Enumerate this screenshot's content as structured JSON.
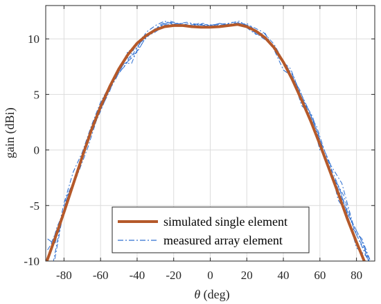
{
  "chart_data": {
    "type": "line",
    "title": "",
    "xlabel_symbol": "θ",
    "xlabel_unit": "(deg)",
    "ylabel": "gain (dBi)",
    "xlim": [
      -90,
      90
    ],
    "ylim": [
      -10,
      13
    ],
    "xticks": [
      -80,
      -60,
      -40,
      -20,
      0,
      20,
      40,
      60,
      80
    ],
    "yticks": [
      -10,
      -5,
      0,
      5,
      10
    ],
    "grid": true,
    "legend_placement": "bottom-center",
    "series": [
      {
        "name": "simulated single element",
        "color": "#b5592a",
        "style": "solid",
        "x": [
          -90,
          -85,
          -80,
          -75,
          -70,
          -65,
          -60,
          -55,
          -50,
          -45,
          -40,
          -35,
          -30,
          -25,
          -20,
          -15,
          -10,
          -5,
          0,
          5,
          10,
          15,
          20,
          25,
          30,
          35,
          40,
          45,
          50,
          55,
          60,
          65,
          70,
          75,
          80,
          85,
          90
        ],
        "y": [
          -10.3,
          -8.0,
          -5.6,
          -3.1,
          -0.6,
          1.8,
          3.9,
          5.7,
          7.3,
          8.6,
          9.6,
          10.3,
          10.8,
          11.1,
          11.2,
          11.2,
          11.1,
          11.05,
          11.05,
          11.1,
          11.2,
          11.3,
          11.1,
          10.7,
          10.1,
          9.2,
          7.9,
          6.3,
          4.5,
          2.6,
          0.5,
          -1.7,
          -3.9,
          -6.2,
          -8.3,
          -10.3,
          -11.5
        ]
      },
      {
        "name": "measured array element",
        "color": "#2f6fd0",
        "style": "dashdot",
        "x": [
          -89,
          -85,
          -80,
          -75,
          -70,
          -65,
          -60,
          -55,
          -50,
          -45,
          -40,
          -35,
          -30,
          -25,
          -20,
          -15,
          -10,
          -5,
          0,
          5,
          10,
          15,
          20,
          25,
          30,
          35,
          40,
          45,
          50,
          55,
          60,
          65,
          70,
          75,
          80,
          85,
          89
        ],
        "y": [
          -8.0,
          -8.5,
          -4.8,
          -2.0,
          -0.2,
          2.2,
          4.3,
          5.8,
          7.1,
          8.9,
          9.2,
          10.6,
          11.2,
          11.6,
          11.3,
          11.4,
          11.1,
          11.3,
          11.0,
          11.4,
          11.2,
          11.5,
          11.0,
          10.4,
          10.5,
          9.0,
          7.2,
          6.6,
          4.0,
          3.2,
          0.0,
          -1.0,
          -4.5,
          -5.8,
          -8.8,
          -9.5,
          -10.5
        ],
        "variants": [
          {
            "x": [
              -88,
              -84,
              -80,
              -74,
              -68,
              -62,
              -56,
              -50,
              -44,
              -38,
              -32,
              -26,
              -20,
              -14,
              -8,
              -2,
              4,
              10,
              16,
              22,
              28,
              34,
              40,
              46,
              52,
              58,
              64,
              70,
              76,
              82,
              88
            ],
            "y": [
              -9.5,
              -7.0,
              -5.5,
              -2.8,
              0.4,
              3.0,
              5.5,
              6.9,
              8.2,
              9.7,
              10.7,
              11.4,
              11.5,
              11.2,
              11.3,
              11.2,
              11.3,
              11.4,
              11.6,
              10.9,
              10.3,
              9.4,
              8.0,
              6.5,
              3.7,
              2.2,
              -0.8,
              -3.2,
              -6.0,
              -7.9,
              -10.2
            ]
          },
          {
            "x": [
              -86,
              -82,
              -78,
              -72,
              -66,
              -60,
              -54,
              -48,
              -42,
              -36,
              -30,
              -24,
              -18,
              -12,
              -6,
              0,
              6,
              12,
              18,
              24,
              30,
              36,
              42,
              48,
              54,
              60,
              66,
              72,
              78,
              84,
              88
            ],
            "y": [
              -10.2,
              -6.8,
              -4.0,
              -1.8,
              1.2,
              3.5,
              5.9,
              7.6,
              8.4,
              9.9,
              10.9,
              11.3,
              11.4,
              11.1,
              11.4,
              11.2,
              11.1,
              11.5,
              11.3,
              10.8,
              10.2,
              8.8,
              7.6,
              5.1,
              3.6,
              0.9,
              -1.4,
              -3.0,
              -6.6,
              -8.6,
              -10.8
            ]
          },
          {
            "x": [
              -89,
              -83,
              -77,
              -71,
              -65,
              -59,
              -53,
              -47,
              -41,
              -35,
              -29,
              -23,
              -17,
              -11,
              -5,
              1,
              7,
              13,
              19,
              25,
              31,
              37,
              43,
              49,
              55,
              61,
              67,
              73,
              79,
              85,
              89
            ],
            "y": [
              -9.0,
              -7.4,
              -3.7,
              -1.2,
              1.6,
              4.3,
              6.4,
              7.5,
              9.3,
              10.1,
              11.0,
              11.5,
              11.2,
              11.4,
              11.0,
              11.3,
              11.2,
              11.4,
              11.2,
              10.5,
              9.8,
              8.7,
              7.0,
              5.4,
              2.8,
              0.2,
              -2.3,
              -4.1,
              -7.3,
              -9.2,
              -10.9
            ]
          },
          {
            "x": [
              -87,
              -81,
              -76,
              -70,
              -64,
              -58,
              -52,
              -46,
              -40,
              -34,
              -28,
              -22,
              -16,
              -10,
              -4,
              2,
              8,
              14,
              20,
              26,
              32,
              38,
              44,
              50,
              56,
              62,
              68,
              74,
              80,
              86
            ],
            "y": [
              -8.4,
              -6.0,
              -3.3,
              -0.9,
              2.4,
              4.6,
              6.3,
              8.2,
              8.8,
              10.5,
              11.1,
              11.6,
              11.3,
              11.0,
              11.4,
              11.1,
              11.3,
              11.2,
              11.4,
              10.6,
              9.9,
              8.2,
              7.3,
              4.7,
              3.0,
              -0.4,
              -2.7,
              -5.2,
              -7.6,
              -9.8
            ]
          },
          {
            "x": [
              -85,
              -79,
              -73,
              -67,
              -61,
              -55,
              -49,
              -43,
              -37,
              -31,
              -25,
              -19,
              -13,
              -7,
              -1,
              5,
              11,
              17,
              23,
              29,
              35,
              41,
              47,
              53,
              59,
              65,
              71,
              77,
              83,
              89
            ],
            "y": [
              -9.8,
              -4.4,
              -2.4,
              0.2,
              3.3,
              5.3,
              7.8,
              7.8,
              10.2,
              10.5,
              11.2,
              11.3,
              11.5,
              11.3,
              11.1,
              11.4,
              11.2,
              11.4,
              11.1,
              10.6,
              9.5,
              7.7,
              6.0,
              3.9,
              1.5,
              -1.8,
              -3.6,
              -6.9,
              -8.0,
              -10.6
            ]
          }
        ]
      }
    ]
  }
}
